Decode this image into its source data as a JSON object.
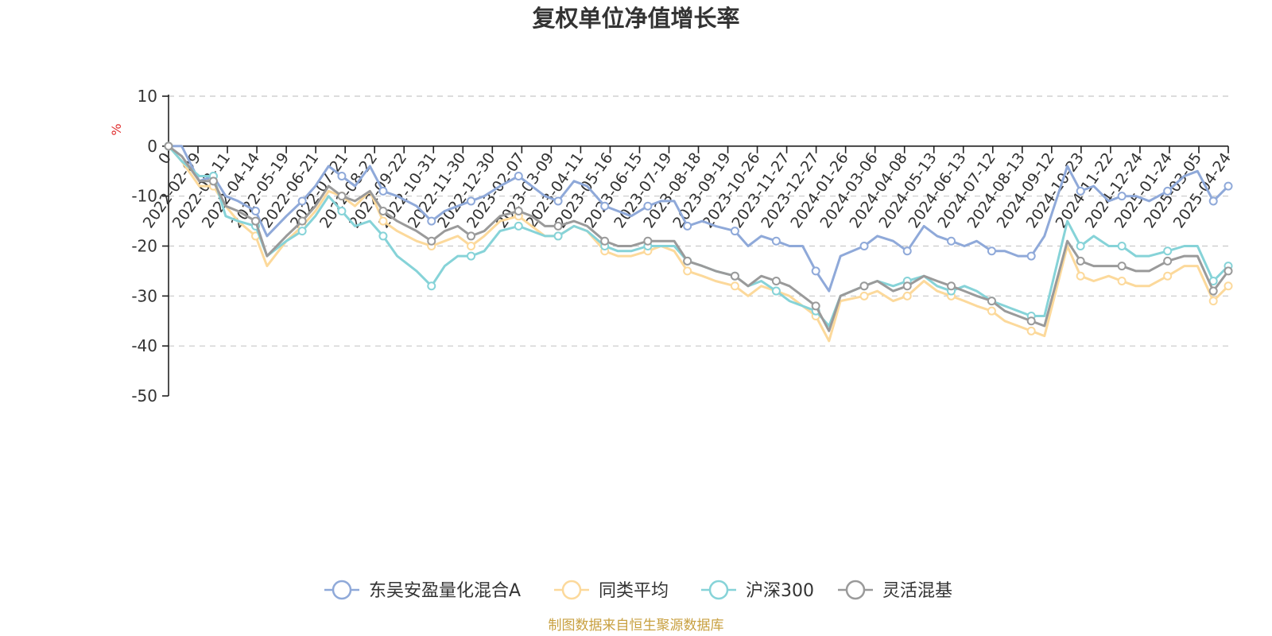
{
  "chart_data": {
    "type": "line",
    "title": "复权单位净值增长率",
    "ylabel": "%",
    "ylim": [
      -50,
      10
    ],
    "yticks": [
      10,
      0,
      -10,
      -20,
      -30,
      -40,
      -50
    ],
    "grid": true,
    "legend_position": "bottom",
    "x_tick_labels": [
      "0",
      "2022-02-09",
      "2022-03-11",
      "2022-04-14",
      "2022-05-19",
      "2022-06-21",
      "2022-07-21",
      "2022-08-22",
      "2022-09-22",
      "2022-10-31",
      "2022-11-30",
      "2022-12-30",
      "2023-02-07",
      "2023-03-09",
      "2023-04-11",
      "2023-05-16",
      "2023-06-15",
      "2023-07-19",
      "2023-08-18",
      "2023-09-19",
      "2023-10-26",
      "2023-11-27",
      "2023-12-27",
      "2024-01-26",
      "2024-03-06",
      "2024-04-08",
      "2024-05-13",
      "2024-06-13",
      "2024-07-12",
      "2024-08-13",
      "2024-09-12",
      "2024-10-23",
      "2024-11-22",
      "2024-12-24",
      "2025-01-24",
      "2025-03-05",
      "2025-04-24"
    ],
    "x": [
      "2022-01-05",
      "2022-01-20",
      "2022-02-09",
      "2022-02-25",
      "2022-03-11",
      "2022-03-25",
      "2022-04-14",
      "2022-04-27",
      "2022-05-19",
      "2022-06-06",
      "2022-06-21",
      "2022-07-06",
      "2022-07-21",
      "2022-08-05",
      "2022-08-22",
      "2022-09-06",
      "2022-09-22",
      "2022-10-14",
      "2022-10-31",
      "2022-11-15",
      "2022-11-30",
      "2022-12-15",
      "2022-12-30",
      "2023-01-17",
      "2023-02-07",
      "2023-02-22",
      "2023-03-09",
      "2023-03-24",
      "2023-04-11",
      "2023-04-26",
      "2023-05-16",
      "2023-05-31",
      "2023-06-15",
      "2023-07-04",
      "2023-07-19",
      "2023-08-03",
      "2023-08-18",
      "2023-09-04",
      "2023-09-19",
      "2023-10-11",
      "2023-10-26",
      "2023-11-10",
      "2023-11-27",
      "2023-12-12",
      "2023-12-27",
      "2024-01-11",
      "2024-01-26",
      "2024-02-08",
      "2024-03-06",
      "2024-03-21",
      "2024-04-08",
      "2024-04-24",
      "2024-05-13",
      "2024-05-28",
      "2024-06-13",
      "2024-06-28",
      "2024-07-12",
      "2024-07-29",
      "2024-08-13",
      "2024-08-28",
      "2024-09-12",
      "2024-09-27",
      "2024-10-23",
      "2024-11-07",
      "2024-11-22",
      "2024-12-09",
      "2024-12-24",
      "2025-01-09",
      "2025-01-24",
      "2025-02-14",
      "2025-03-05",
      "2025-03-20",
      "2025-04-07",
      "2025-04-24"
    ],
    "series": [
      {
        "name": "东吴安盈量化混合A",
        "color": "#8fa9d9",
        "values": [
          0,
          0,
          -7,
          -6,
          -10,
          -11,
          -13,
          -18,
          -14,
          -11,
          -8,
          -4,
          -6,
          -8,
          -4,
          -9,
          -10,
          -12,
          -15,
          -13,
          -12,
          -11,
          -10,
          -8,
          -6,
          -8,
          -10,
          -11,
          -7,
          -8,
          -12,
          -13,
          -14,
          -12,
          -11,
          -11,
          -16,
          -15,
          -16,
          -17,
          -20,
          -18,
          -19,
          -20,
          -20,
          -25,
          -29,
          -22,
          -20,
          -18,
          -19,
          -21,
          -16,
          -18,
          -19,
          -20,
          -19,
          -21,
          -21,
          -22,
          -22,
          -18,
          -4,
          -9,
          -8,
          -11,
          -10,
          -10,
          -11,
          -9,
          -6,
          -5,
          -11,
          -8
        ]
      },
      {
        "name": "同类平均",
        "color": "#fcd99b",
        "values": [
          0,
          -3,
          -8,
          -8,
          -12,
          -15,
          -18,
          -24,
          -19,
          -16,
          -13,
          -9,
          -10,
          -12,
          -9,
          -15,
          -17,
          -19,
          -20,
          -19,
          -18,
          -20,
          -18,
          -15,
          -14,
          -16,
          -18,
          -18,
          -16,
          -17,
          -21,
          -22,
          -22,
          -21,
          -20,
          -21,
          -25,
          -26,
          -27,
          -28,
          -30,
          -28,
          -29,
          -30,
          -32,
          -34,
          -39,
          -31,
          -30,
          -29,
          -31,
          -30,
          -27,
          -29,
          -30,
          -31,
          -32,
          -33,
          -35,
          -36,
          -37,
          -38,
          -20,
          -26,
          -27,
          -26,
          -27,
          -28,
          -28,
          -26,
          -24,
          -24,
          -31,
          -28
        ]
      },
      {
        "name": "沪深300",
        "color": "#86d3d8",
        "values": [
          0,
          -3,
          -6,
          -6,
          -14,
          -15,
          -16,
          -22,
          -19,
          -17,
          -14,
          -10,
          -13,
          -16,
          -15,
          -18,
          -22,
          -25,
          -28,
          -24,
          -22,
          -22,
          -21,
          -17,
          -16,
          -17,
          -18,
          -18,
          -16,
          -17,
          -20,
          -21,
          -21,
          -20,
          -20,
          -20,
          -23,
          -24,
          -25,
          -26,
          -28,
          -27,
          -29,
          -31,
          -32,
          -33,
          -36,
          -30,
          -28,
          -27,
          -28,
          -27,
          -26,
          -28,
          -29,
          -28,
          -29,
          -31,
          -32,
          -33,
          -34,
          -34,
          -15,
          -20,
          -18,
          -20,
          -20,
          -22,
          -22,
          -21,
          -20,
          -20,
          -27,
          -24
        ]
      },
      {
        "name": "灵活混基",
        "color": "#9a9a9a",
        "values": [
          0,
          -2,
          -7,
          -7,
          -12,
          -13,
          -15,
          -22,
          -18,
          -15,
          -12,
          -8,
          -10,
          -11,
          -9,
          -13,
          -15,
          -17,
          -19,
          -17,
          -16,
          -18,
          -17,
          -14,
          -13,
          -14,
          -16,
          -16,
          -15,
          -16,
          -19,
          -20,
          -20,
          -19,
          -19,
          -19,
          -23,
          -24,
          -25,
          -26,
          -28,
          -26,
          -27,
          -28,
          -30,
          -32,
          -37,
          -30,
          -28,
          -27,
          -29,
          -28,
          -26,
          -27,
          -28,
          -29,
          -30,
          -31,
          -33,
          -34,
          -35,
          -36,
          -19,
          -23,
          -24,
          -24,
          -24,
          -25,
          -25,
          -23,
          -22,
          -22,
          -29,
          -25
        ]
      }
    ]
  },
  "footer": {
    "source": "制图数据来自恒生聚源数据库"
  }
}
